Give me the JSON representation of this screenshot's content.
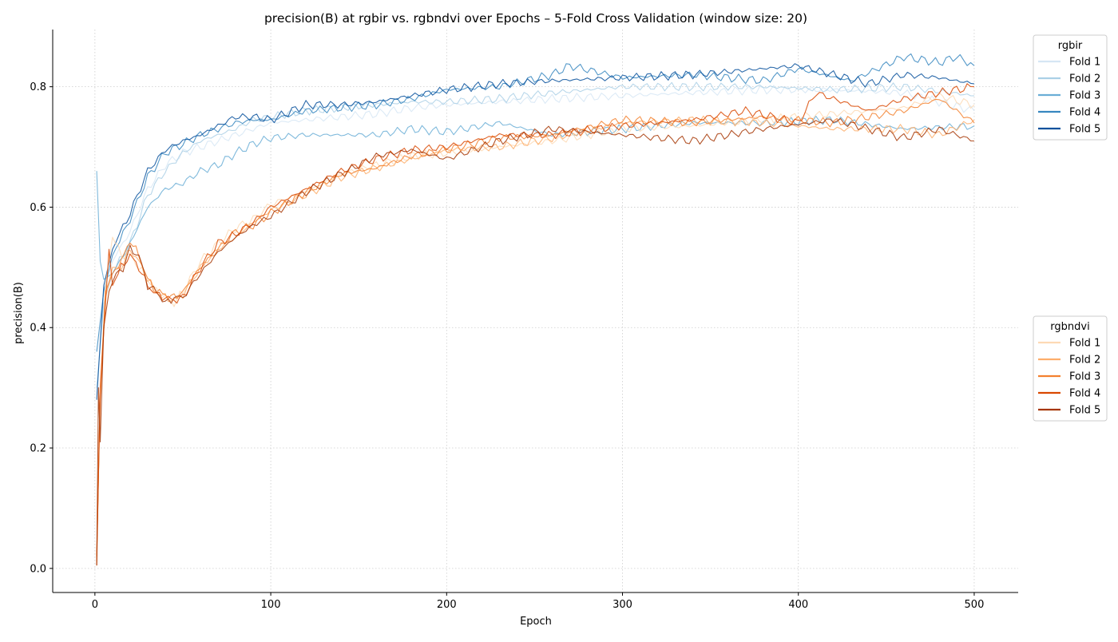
{
  "chart_data": {
    "type": "line",
    "title": "precision(B) at rgbir vs. rgbndvi over Epochs – 5-Fold Cross Validation (window size: 20)",
    "xlabel": "Epoch",
    "ylabel": "precision(B)",
    "xlim": [
      -24,
      525
    ],
    "ylim": [
      -0.04,
      0.895
    ],
    "xticks": [
      0,
      100,
      200,
      300,
      400,
      500
    ],
    "yticks": [
      0.0,
      0.2,
      0.4,
      0.6,
      0.8
    ],
    "xtick_labels": [
      "0",
      "100",
      "200",
      "300",
      "400",
      "500"
    ],
    "ytick_labels": [
      "0.0",
      "0.2",
      "0.4",
      "0.6",
      "0.8"
    ],
    "grid": true,
    "legends": [
      {
        "title": "rgbir",
        "placement": "top-right outside",
        "entries": [
          "Fold 1",
          "Fold 2",
          "Fold 3",
          "Fold 4",
          "Fold 5"
        ]
      },
      {
        "title": "rgbndvi",
        "placement": "middle-right outside",
        "entries": [
          "Fold 1",
          "Fold 2",
          "Fold 3",
          "Fold 4",
          "Fold 5"
        ]
      }
    ],
    "series": [
      {
        "group": "rgbir",
        "name": "Fold 1",
        "color": "#d6e6f4",
        "x": [
          1,
          5,
          10,
          20,
          30,
          40,
          50,
          60,
          70,
          80,
          90,
          100,
          120,
          140,
          160,
          180,
          200,
          230,
          260,
          300,
          340,
          380,
          420,
          460,
          500
        ],
        "y": [
          0.29,
          0.46,
          0.51,
          0.56,
          0.63,
          0.67,
          0.69,
          0.7,
          0.71,
          0.72,
          0.73,
          0.74,
          0.745,
          0.75,
          0.755,
          0.765,
          0.77,
          0.775,
          0.78,
          0.785,
          0.79,
          0.795,
          0.795,
          0.79,
          0.76
        ]
      },
      {
        "group": "rgbir",
        "name": "Fold 2",
        "color": "#abd0e6",
        "x": [
          1,
          5,
          10,
          20,
          30,
          40,
          50,
          60,
          70,
          80,
          90,
          100,
          120,
          140,
          160,
          180,
          200,
          230,
          260,
          300,
          340,
          380,
          420,
          460,
          500
        ],
        "y": [
          0.3,
          0.44,
          0.49,
          0.54,
          0.62,
          0.66,
          0.69,
          0.71,
          0.72,
          0.73,
          0.745,
          0.75,
          0.76,
          0.765,
          0.77,
          0.775,
          0.775,
          0.78,
          0.79,
          0.8,
          0.8,
          0.8,
          0.795,
          0.8,
          0.785
        ]
      },
      {
        "group": "rgbir",
        "name": "Fold 3",
        "color": "#6aaed6",
        "x": [
          1,
          3,
          5,
          10,
          20,
          30,
          40,
          50,
          60,
          70,
          80,
          90,
          100,
          120,
          140,
          160,
          180,
          200,
          230,
          260,
          300,
          340,
          380,
          420,
          460,
          500
        ],
        "y": [
          0.66,
          0.51,
          0.48,
          0.49,
          0.54,
          0.6,
          0.63,
          0.64,
          0.66,
          0.67,
          0.69,
          0.705,
          0.715,
          0.72,
          0.72,
          0.72,
          0.73,
          0.725,
          0.74,
          0.72,
          0.73,
          0.74,
          0.74,
          0.745,
          0.73,
          0.735
        ]
      },
      {
        "group": "rgbir",
        "name": "Fold 4",
        "color": "#3787c0",
        "x": [
          1,
          5,
          10,
          20,
          30,
          40,
          50,
          60,
          70,
          80,
          90,
          100,
          120,
          140,
          160,
          180,
          200,
          230,
          260,
          270,
          300,
          340,
          380,
          400,
          430,
          460,
          480,
          490,
          500
        ],
        "y": [
          0.36,
          0.46,
          0.52,
          0.58,
          0.65,
          0.69,
          0.705,
          0.72,
          0.73,
          0.74,
          0.745,
          0.745,
          0.76,
          0.765,
          0.77,
          0.78,
          0.795,
          0.8,
          0.82,
          0.835,
          0.815,
          0.82,
          0.81,
          0.83,
          0.81,
          0.85,
          0.84,
          0.85,
          0.835
        ]
      },
      {
        "group": "rgbir",
        "name": "Fold 5",
        "color": "#08519c",
        "x": [
          1,
          5,
          10,
          20,
          30,
          40,
          50,
          60,
          70,
          80,
          90,
          100,
          120,
          140,
          160,
          180,
          200,
          230,
          260,
          300,
          340,
          380,
          400,
          420,
          440,
          460,
          480,
          500
        ],
        "y": [
          0.28,
          0.47,
          0.53,
          0.59,
          0.66,
          0.695,
          0.71,
          0.72,
          0.735,
          0.75,
          0.75,
          0.745,
          0.77,
          0.77,
          0.775,
          0.785,
          0.795,
          0.805,
          0.81,
          0.815,
          0.82,
          0.83,
          0.835,
          0.82,
          0.805,
          0.82,
          0.815,
          0.805
        ]
      },
      {
        "group": "rgbndvi",
        "name": "Fold 1",
        "color": "#fdd9b4",
        "x": [
          1,
          3,
          6,
          10,
          15,
          20,
          25,
          30,
          35,
          40,
          45,
          50,
          60,
          70,
          80,
          90,
          100,
          120,
          140,
          160,
          180,
          200,
          230,
          260,
          300,
          340,
          380,
          420,
          460,
          480,
          500
        ],
        "y": [
          0.01,
          0.3,
          0.47,
          0.55,
          0.52,
          0.52,
          0.5,
          0.48,
          0.46,
          0.45,
          0.44,
          0.46,
          0.51,
          0.54,
          0.565,
          0.58,
          0.605,
          0.625,
          0.655,
          0.67,
          0.685,
          0.69,
          0.7,
          0.71,
          0.73,
          0.735,
          0.745,
          0.755,
          0.765,
          0.785,
          0.77
        ]
      },
      {
        "group": "rgbndvi",
        "name": "Fold 2",
        "color": "#fdae6b",
        "x": [
          1,
          3,
          6,
          10,
          15,
          20,
          25,
          30,
          35,
          40,
          45,
          50,
          60,
          70,
          80,
          90,
          100,
          120,
          140,
          160,
          180,
          200,
          230,
          260,
          300,
          340,
          380,
          420,
          460,
          480,
          500
        ],
        "y": [
          0.02,
          0.28,
          0.45,
          0.5,
          0.5,
          0.53,
          0.51,
          0.48,
          0.46,
          0.45,
          0.445,
          0.455,
          0.5,
          0.53,
          0.55,
          0.575,
          0.595,
          0.62,
          0.65,
          0.665,
          0.68,
          0.695,
          0.7,
          0.715,
          0.74,
          0.745,
          0.74,
          0.73,
          0.73,
          0.72,
          0.745
        ]
      },
      {
        "group": "rgbndvi",
        "name": "Fold 3",
        "color": "#f3812f",
        "x": [
          1,
          3,
          6,
          10,
          15,
          20,
          25,
          30,
          35,
          40,
          45,
          50,
          60,
          70,
          80,
          90,
          100,
          120,
          140,
          160,
          180,
          200,
          230,
          260,
          300,
          340,
          380,
          420,
          460,
          480,
          500
        ],
        "y": [
          0.02,
          0.29,
          0.46,
          0.49,
          0.51,
          0.545,
          0.52,
          0.48,
          0.46,
          0.455,
          0.45,
          0.46,
          0.5,
          0.53,
          0.56,
          0.57,
          0.59,
          0.625,
          0.655,
          0.665,
          0.685,
          0.695,
          0.715,
          0.72,
          0.745,
          0.74,
          0.75,
          0.74,
          0.76,
          0.78,
          0.74
        ]
      },
      {
        "group": "rgbndvi",
        "name": "Fold 4",
        "color": "#d94801",
        "x": [
          1,
          3,
          6,
          8,
          10,
          15,
          20,
          25,
          30,
          35,
          40,
          45,
          50,
          60,
          70,
          80,
          90,
          100,
          120,
          140,
          160,
          180,
          200,
          230,
          260,
          300,
          340,
          370,
          400,
          410,
          440,
          460,
          480,
          500
        ],
        "y": [
          0.005,
          0.3,
          0.44,
          0.53,
          0.47,
          0.5,
          0.52,
          0.5,
          0.47,
          0.455,
          0.45,
          0.445,
          0.45,
          0.5,
          0.54,
          0.555,
          0.575,
          0.6,
          0.63,
          0.66,
          0.68,
          0.695,
          0.7,
          0.72,
          0.72,
          0.735,
          0.745,
          0.76,
          0.74,
          0.79,
          0.76,
          0.78,
          0.79,
          0.8
        ]
      },
      {
        "group": "rgbndvi",
        "name": "Fold 5",
        "color": "#a63603",
        "x": [
          1,
          2,
          3,
          5,
          8,
          12,
          16,
          20,
          25,
          30,
          35,
          40,
          45,
          50,
          60,
          70,
          80,
          90,
          100,
          120,
          140,
          160,
          180,
          200,
          230,
          260,
          300,
          340,
          380,
          420,
          460,
          480,
          500
        ],
        "y": [
          0.005,
          0.3,
          0.21,
          0.4,
          0.46,
          0.49,
          0.5,
          0.53,
          0.52,
          0.47,
          0.46,
          0.44,
          0.45,
          0.45,
          0.49,
          0.525,
          0.55,
          0.57,
          0.585,
          0.625,
          0.655,
          0.685,
          0.695,
          0.68,
          0.71,
          0.73,
          0.72,
          0.71,
          0.73,
          0.745,
          0.715,
          0.73,
          0.71
        ]
      }
    ]
  }
}
